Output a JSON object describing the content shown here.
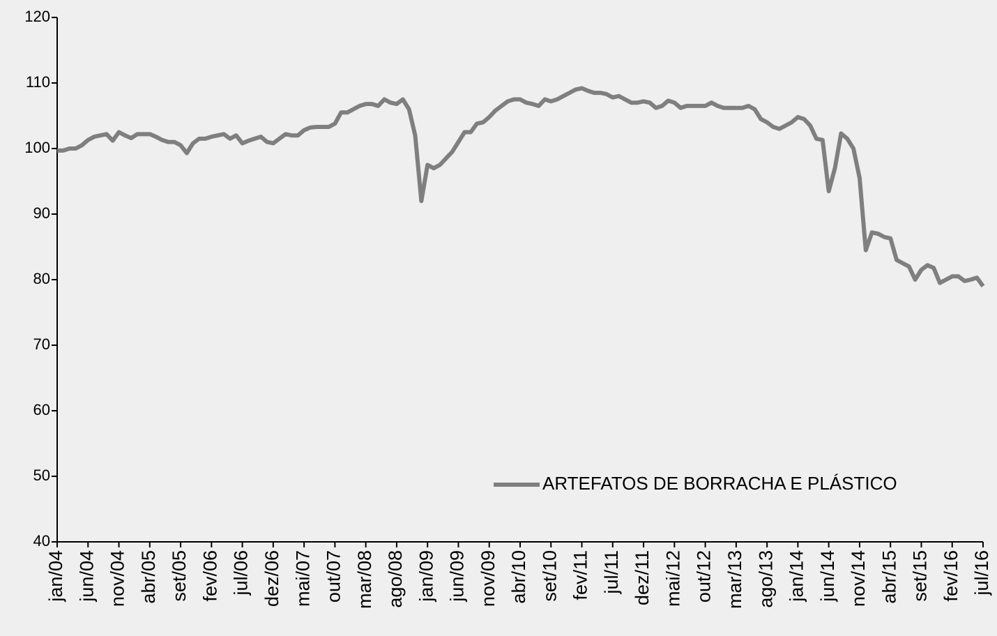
{
  "chart_data": {
    "type": "line",
    "categories": [
      "jan/04",
      null,
      null,
      null,
      null,
      "jun/04",
      null,
      null,
      null,
      null,
      "nov/04",
      null,
      null,
      null,
      null,
      "abr/05",
      null,
      null,
      null,
      null,
      "set/05",
      null,
      null,
      null,
      null,
      "fev/06",
      null,
      null,
      null,
      null,
      "jul/06",
      null,
      null,
      null,
      null,
      "dez/06",
      null,
      null,
      null,
      null,
      "mai/07",
      null,
      null,
      null,
      null,
      "out/07",
      null,
      null,
      null,
      null,
      "mar/08",
      null,
      null,
      null,
      null,
      "ago/08",
      null,
      null,
      null,
      null,
      "jan/09",
      null,
      null,
      null,
      null,
      "jun/09",
      null,
      null,
      null,
      null,
      "nov/09",
      null,
      null,
      null,
      null,
      "abr/10",
      null,
      null,
      null,
      null,
      "set/10",
      null,
      null,
      null,
      null,
      "fev/11",
      null,
      null,
      null,
      null,
      "jul/11",
      null,
      null,
      null,
      null,
      "dez/11",
      null,
      null,
      null,
      null,
      "mai/12",
      null,
      null,
      null,
      null,
      "out/12",
      null,
      null,
      null,
      null,
      "mar/13",
      null,
      null,
      null,
      null,
      "ago/13",
      null,
      null,
      null,
      null,
      "jan/14",
      null,
      null,
      null,
      null,
      "jun/14",
      null,
      null,
      null,
      null,
      "nov/14",
      null,
      null,
      null,
      null,
      "abr/15",
      null,
      null,
      null,
      null,
      "set/15",
      null,
      null,
      null,
      null,
      "fev/16",
      null,
      null,
      null,
      null,
      "jul/16"
    ],
    "series": [
      {
        "name": "ARTEFATOS DE BORRACHA E PLÁSTICO",
        "color": "#7f7f7f",
        "values": [
          99.7,
          99.7,
          100,
          100,
          100.5,
          101.3,
          101.8,
          102,
          102.2,
          101.2,
          102.5,
          102,
          101.6,
          102.2,
          102.2,
          102.2,
          101.8,
          101.3,
          101,
          101,
          100.5,
          99.3,
          100.8,
          101.5,
          101.5,
          101.8,
          102,
          102.2,
          101.5,
          102,
          100.8,
          101.2,
          101.5,
          101.8,
          101,
          100.8,
          101.5,
          102.2,
          102,
          102,
          102.8,
          103.2,
          103.3,
          103.3,
          103.3,
          103.8,
          105.5,
          105.5,
          106,
          106.5,
          106.8,
          106.8,
          106.5,
          107.5,
          107,
          106.8,
          107.5,
          106,
          102,
          92,
          97.5,
          97,
          97.5,
          98.5,
          99.5,
          101,
          102.5,
          102.5,
          103.8,
          104,
          104.8,
          105.8,
          106.5,
          107.2,
          107.5,
          107.5,
          107,
          106.8,
          106.5,
          107.5,
          107.2,
          107.5,
          108,
          108.5,
          109,
          109.2,
          108.8,
          108.5,
          108.5,
          108.3,
          107.8,
          108,
          107.5,
          107,
          107,
          107.2,
          107,
          106.2,
          106.5,
          107.3,
          107,
          106.2,
          106.5,
          106.5,
          106.5,
          106.5,
          107,
          106.5,
          106.2,
          106.2,
          106.2,
          106.2,
          106.5,
          106,
          104.5,
          104,
          103.3,
          103,
          103.5,
          104,
          104.8,
          104.5,
          103.5,
          101.5,
          101.3,
          93.5,
          97,
          102.3,
          101.5,
          100,
          95.5,
          84.5,
          87.2,
          87,
          86.5,
          86.3,
          83,
          82.5,
          82,
          80,
          81.5,
          82.2,
          81.8,
          79.5,
          80,
          80.5,
          80.5,
          79.8,
          80,
          80.3,
          79
        ]
      }
    ],
    "ylim": [
      40,
      120
    ],
    "yticks": [
      40,
      50,
      60,
      70,
      80,
      90,
      100,
      110,
      120
    ],
    "legend_position": "lower right"
  }
}
